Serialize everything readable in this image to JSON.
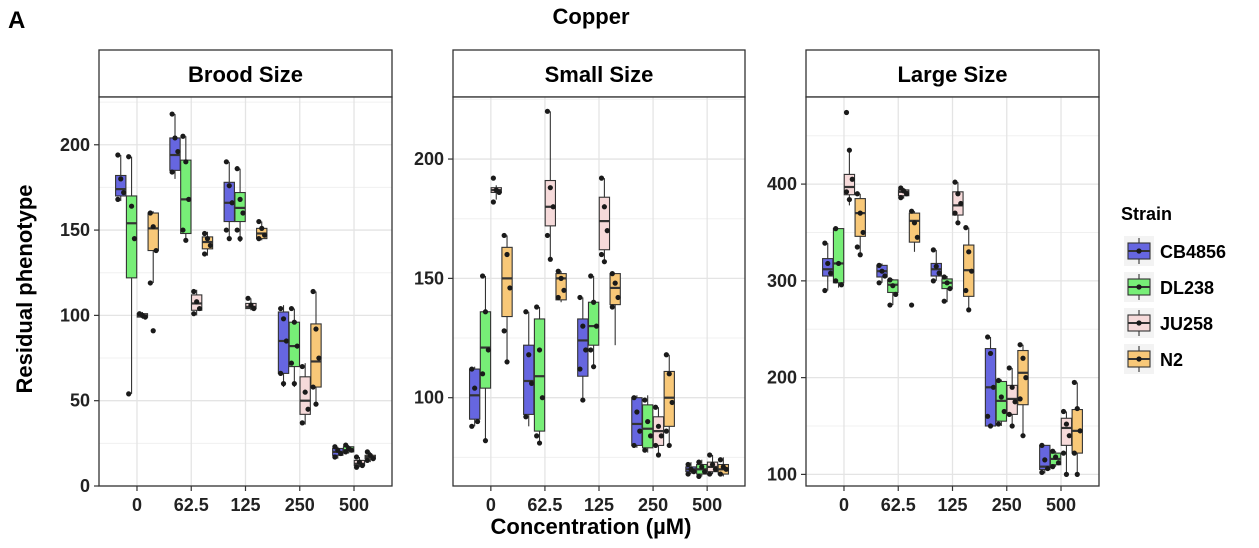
{
  "panel_label": "A",
  "figure_title": "Copper",
  "x_axis_title": "Concentration (µM)",
  "y_axis_title": "Residual phenotype",
  "legend": {
    "title": "Strain",
    "entries": [
      {
        "name": "CB4856",
        "color": "#6666E0"
      },
      {
        "name": "DL238",
        "color": "#77EE77"
      },
      {
        "name": "JU258",
        "color": "#F6DADA"
      },
      {
        "name": "N2",
        "color": "#F8C878"
      }
    ]
  },
  "chart_data": [
    {
      "type": "box",
      "title": "Brood Size",
      "categories": [
        "0",
        "62.5",
        "125",
        "250",
        "500"
      ],
      "y_ticks": [
        0,
        50,
        100,
        150,
        200
      ],
      "ylim": [
        0,
        228
      ],
      "grid": true,
      "series": [
        {
          "name": "CB4856",
          "boxes": [
            {
              "min": 167,
              "q1": 170,
              "median": 174,
              "q3": 182,
              "max": 194,
              "points": [
                194,
                180,
                172,
                168
              ]
            },
            {
              "min": 180,
              "q1": 185,
              "median": 194,
              "q3": 204,
              "max": 218,
              "points": [
                218,
                204,
                196,
                184
              ]
            },
            {
              "min": 144,
              "q1": 155,
              "median": 166,
              "q3": 178,
              "max": 190,
              "points": [
                190,
                176,
                166,
                150,
                145
              ]
            },
            {
              "min": 58,
              "q1": 66,
              "median": 85,
              "q3": 102,
              "max": 106,
              "points": [
                104,
                98,
                85,
                66,
                60
              ]
            },
            {
              "min": 16,
              "q1": 18,
              "median": 20,
              "q3": 22,
              "max": 23,
              "points": [
                23,
                21,
                19,
                17
              ]
            }
          ]
        },
        {
          "name": "DL238",
          "boxes": [
            {
              "min": 54,
              "q1": 122,
              "median": 154,
              "q3": 170,
              "max": 193,
              "points": [
                193,
                164,
                145,
                54
              ]
            },
            {
              "min": 143,
              "q1": 148,
              "median": 168,
              "q3": 191,
              "max": 205,
              "points": [
                205,
                190,
                168,
                150,
                144
              ]
            },
            {
              "min": 143,
              "q1": 155,
              "median": 163,
              "q3": 172,
              "max": 186,
              "points": [
                186,
                168,
                160,
                150,
                145
              ]
            },
            {
              "min": 58,
              "q1": 70,
              "median": 82,
              "q3": 96,
              "max": 104,
              "points": [
                104,
                96,
                82,
                72,
                60
              ]
            },
            {
              "min": 19,
              "q1": 20,
              "median": 21,
              "q3": 23,
              "max": 24,
              "points": [
                24,
                22,
                21,
                20
              ]
            }
          ]
        },
        {
          "name": "JU258",
          "boxes": [
            {
              "min": 98,
              "q1": 99,
              "median": 100,
              "q3": 101,
              "max": 102,
              "points": [
                101,
                100,
                99
              ]
            },
            {
              "min": 100,
              "q1": 103,
              "median": 107,
              "q3": 112,
              "max": 115,
              "points": [
                114,
                108,
                104,
                101
              ]
            },
            {
              "min": 103,
              "q1": 104,
              "median": 105,
              "q3": 107,
              "max": 110,
              "points": [
                110,
                106,
                104
              ]
            },
            {
              "min": 36,
              "q1": 42,
              "median": 50,
              "q3": 64,
              "max": 72,
              "points": [
                70,
                55,
                45,
                37
              ]
            },
            {
              "min": 11,
              "q1": 12,
              "median": 13,
              "q3": 15,
              "max": 17,
              "points": [
                17,
                14,
                12,
                11
              ]
            }
          ]
        },
        {
          "name": "N2",
          "boxes": [
            {
              "min": 119,
              "q1": 138,
              "median": 151,
              "q3": 160,
              "max": 161,
              "points": [
                160,
                152,
                138,
                119,
                91
              ]
            },
            {
              "min": 135,
              "q1": 139,
              "median": 143,
              "q3": 146,
              "max": 149,
              "points": [
                148,
                145,
                141,
                136
              ]
            },
            {
              "min": 144,
              "q1": 145,
              "median": 148,
              "q3": 151,
              "max": 155,
              "points": [
                155,
                151,
                147,
                145
              ]
            },
            {
              "min": 47,
              "q1": 58,
              "median": 73,
              "q3": 95,
              "max": 114,
              "points": [
                114,
                92,
                75,
                58,
                48
              ]
            },
            {
              "min": 14,
              "q1": 16,
              "median": 17,
              "q3": 18,
              "max": 20,
              "points": [
                20,
                18,
                16,
                15
              ]
            }
          ]
        }
      ]
    },
    {
      "type": "box",
      "title": "Small Size",
      "categories": [
        "0",
        "62.5",
        "125",
        "250",
        "500"
      ],
      "y_ticks": [
        100,
        150,
        200
      ],
      "ylim": [
        63,
        226
      ],
      "grid": true,
      "series": [
        {
          "name": "CB4856",
          "boxes": [
            {
              "min": 88,
              "q1": 91,
              "median": 101,
              "q3": 112,
              "max": 113,
              "points": [
                112,
                104,
                90,
                88
              ]
            },
            {
              "min": 88,
              "q1": 93,
              "median": 107,
              "q3": 122,
              "max": 136,
              "points": [
                136,
                118,
                106,
                92
              ]
            },
            {
              "min": 98,
              "q1": 109,
              "median": 124,
              "q3": 133,
              "max": 142,
              "points": [
                142,
                130,
                120,
                112,
                99
              ]
            },
            {
              "min": 79,
              "q1": 80,
              "median": 89,
              "q3": 100,
              "max": 101,
              "points": [
                100,
                94,
                86,
                80
              ]
            },
            {
              "min": 68,
              "q1": 69,
              "median": 70,
              "q3": 71,
              "max": 73,
              "points": [
                72,
                70,
                69,
                68
              ]
            }
          ]
        },
        {
          "name": "DL238",
          "boxes": [
            {
              "min": 82,
              "q1": 104,
              "median": 121,
              "q3": 136,
              "max": 151,
              "points": [
                151,
                136,
                120,
                110,
                82
              ]
            },
            {
              "min": 81,
              "q1": 86,
              "median": 109,
              "q3": 133,
              "max": 138,
              "points": [
                138,
                120,
                100,
                84,
                81
              ]
            },
            {
              "min": 112,
              "q1": 122,
              "median": 130,
              "q3": 140,
              "max": 151,
              "points": [
                151,
                140,
                130,
                120,
                113
              ]
            },
            {
              "min": 77,
              "q1": 79,
              "median": 87,
              "q3": 97,
              "max": 101,
              "points": [
                99,
                90,
                84,
                78
              ]
            },
            {
              "min": 67,
              "q1": 68,
              "median": 70,
              "q3": 72,
              "max": 74,
              "points": [
                73,
                71,
                69,
                67
              ]
            }
          ]
        },
        {
          "name": "JU258",
          "boxes": [
            {
              "min": 183,
              "q1": 186,
              "median": 187,
              "q3": 188,
              "max": 189,
              "points": [
                192,
                187,
                186,
                182
              ]
            },
            {
              "min": 159,
              "q1": 172,
              "median": 180,
              "q3": 191,
              "max": 220,
              "points": [
                220,
                188,
                180,
                168,
                158
              ]
            },
            {
              "min": 156,
              "q1": 162,
              "median": 174,
              "q3": 184,
              "max": 192,
              "points": [
                192,
                180,
                170,
                160,
                157
              ]
            },
            {
              "min": 76,
              "q1": 80,
              "median": 86,
              "q3": 92,
              "max": 96,
              "points": [
                96,
                88,
                84,
                80,
                76
              ]
            },
            {
              "min": 68,
              "q1": 69,
              "median": 71,
              "q3": 73,
              "max": 76,
              "points": [
                76,
                72,
                70,
                68
              ]
            }
          ]
        },
        {
          "name": "N2",
          "boxes": [
            {
              "min": 115,
              "q1": 134,
              "median": 150,
              "q3": 163,
              "max": 168,
              "points": [
                168,
                160,
                146,
                128,
                115
              ]
            },
            {
              "min": 140,
              "q1": 141,
              "median": 150,
              "q3": 152,
              "max": 153,
              "points": [
                153,
                150,
                145,
                142
              ]
            },
            {
              "min": 122,
              "q1": 139,
              "median": 146,
              "q3": 152,
              "max": 152,
              "points": [
                152,
                148,
                142,
                138
              ]
            },
            {
              "min": 80,
              "q1": 88,
              "median": 100,
              "q3": 111,
              "max": 118,
              "points": [
                118,
                110,
                98,
                86,
                80
              ]
            },
            {
              "min": 67,
              "q1": 68,
              "median": 70,
              "q3": 72,
              "max": 75,
              "points": [
                74,
                71,
                70,
                68
              ]
            }
          ]
        }
      ]
    },
    {
      "type": "box",
      "title": "Large Size",
      "categories": [
        "0",
        "62.5",
        "125",
        "250",
        "500"
      ],
      "y_ticks": [
        100,
        200,
        300,
        400
      ],
      "ylim": [
        88,
        490
      ],
      "grid": true,
      "series": [
        {
          "name": "CB4856",
          "boxes": [
            {
              "min": 290,
              "q1": 305,
              "median": 312,
              "q3": 323,
              "max": 339,
              "points": [
                339,
                318,
                308,
                290
              ]
            },
            {
              "min": 298,
              "q1": 304,
              "median": 310,
              "q3": 316,
              "max": 318,
              "points": [
                316,
                310,
                305,
                298
              ]
            },
            {
              "min": 300,
              "q1": 305,
              "median": 312,
              "q3": 318,
              "max": 332,
              "points": [
                332,
                315,
                308,
                300
              ]
            },
            {
              "min": 148,
              "q1": 150,
              "median": 190,
              "q3": 230,
              "max": 242,
              "points": [
                242,
                225,
                190,
                160,
                150
              ]
            },
            {
              "min": 101,
              "q1": 105,
              "median": 108,
              "q3": 130,
              "max": 130,
              "points": [
                130,
                115,
                106,
                102
              ]
            }
          ]
        },
        {
          "name": "DL238",
          "boxes": [
            {
              "min": 293,
              "q1": 298,
              "median": 318,
              "q3": 354,
              "max": 354,
              "points": [
                354,
                318,
                296,
                300
              ]
            },
            {
              "min": 275,
              "q1": 288,
              "median": 296,
              "q3": 301,
              "max": 302,
              "points": [
                301,
                295,
                286,
                275
              ]
            },
            {
              "min": 278,
              "q1": 292,
              "median": 298,
              "q3": 302,
              "max": 305,
              "points": [
                304,
                298,
                292,
                279
              ]
            },
            {
              "min": 150,
              "q1": 155,
              "median": 176,
              "q3": 196,
              "max": 198,
              "points": [
                197,
                180,
                165,
                152
              ]
            },
            {
              "min": 108,
              "q1": 110,
              "median": 116,
              "q3": 122,
              "max": 124,
              "points": [
                124,
                118,
                112,
                108
              ]
            }
          ]
        },
        {
          "name": "JU258",
          "boxes": [
            {
              "min": 378,
              "q1": 389,
              "median": 397,
              "q3": 410,
              "max": 435,
              "points": [
                474,
                435,
                405,
                392,
                384
              ]
            },
            {
              "min": 385,
              "q1": 388,
              "median": 392,
              "q3": 394,
              "max": 396,
              "points": [
                396,
                393,
                390,
                386
              ]
            },
            {
              "min": 358,
              "q1": 368,
              "median": 378,
              "q3": 392,
              "max": 402,
              "points": [
                402,
                390,
                380,
                370,
                360
              ]
            },
            {
              "min": 150,
              "q1": 162,
              "median": 178,
              "q3": 192,
              "max": 210,
              "points": [
                210,
                190,
                175,
                162,
                150
              ]
            },
            {
              "min": 100,
              "q1": 130,
              "median": 148,
              "q3": 158,
              "max": 165,
              "points": [
                165,
                152,
                140,
                122,
                100
              ]
            }
          ]
        },
        {
          "name": "N2",
          "boxes": [
            {
              "min": 327,
              "q1": 346,
              "median": 370,
              "q3": 385,
              "max": 390,
              "points": [
                390,
                370,
                350,
                335,
                327
              ]
            },
            {
              "min": 330,
              "q1": 340,
              "median": 362,
              "q3": 370,
              "max": 372,
              "points": [
                372,
                360,
                345,
                275
              ]
            },
            {
              "min": 270,
              "q1": 284,
              "median": 311,
              "q3": 337,
              "max": 355,
              "points": [
                355,
                330,
                310,
                290,
                270
              ]
            },
            {
              "min": 138,
              "q1": 172,
              "median": 205,
              "q3": 228,
              "max": 234,
              "points": [
                234,
                220,
                200,
                178,
                140
              ]
            },
            {
              "min": 100,
              "q1": 122,
              "median": 145,
              "q3": 167,
              "max": 195,
              "points": [
                195,
                168,
                145,
                122,
                100
              ]
            }
          ]
        }
      ]
    }
  ]
}
